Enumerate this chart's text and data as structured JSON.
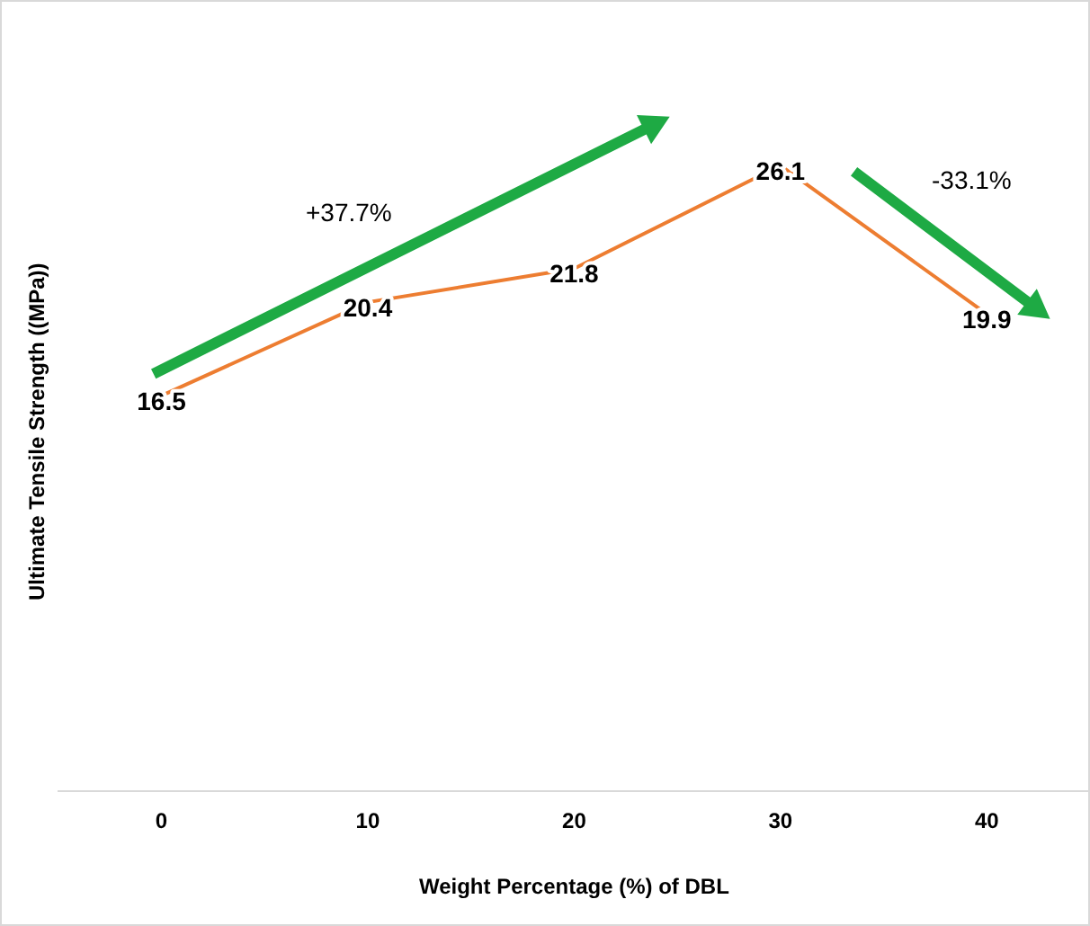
{
  "chart_data": {
    "type": "line",
    "xlabel": "Weight Percentage (%) of DBL",
    "ylabel": "Ultimate Tensile Strength ((MPa))",
    "categories": [
      "0",
      "10",
      "20",
      "30",
      "40"
    ],
    "series": [
      {
        "color": "#ed7d31",
        "values": [
          16.5,
          20.4,
          21.8,
          26.1,
          19.9
        ]
      }
    ],
    "data_labels": true,
    "grid": false,
    "legend": false,
    "tick_labels": "x",
    "annotations": [
      "+37.7%",
      "-33.1%"
    ]
  }
}
